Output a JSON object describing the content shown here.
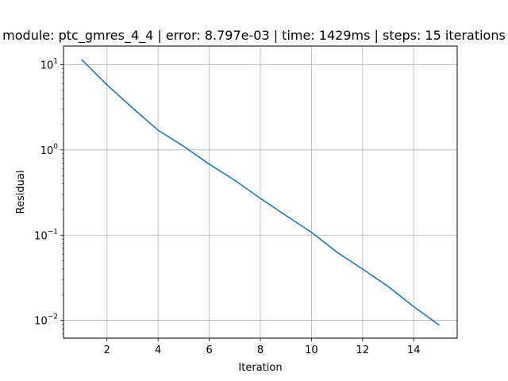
{
  "chart_data": {
    "type": "line",
    "title": "module: ptc_gmres_4_4 | error: 8.797e-03 | time: 1429ms | steps: 15 iterations",
    "xlabel": "Iteration",
    "ylabel": "Residual",
    "xlim": [
      0.3,
      15.7
    ],
    "ylim": [
      0.0062,
      16.5
    ],
    "yscale": "log",
    "grid": true,
    "x_ticks": [
      2,
      4,
      6,
      8,
      10,
      12,
      14
    ],
    "x_tick_labels": [
      "2",
      "4",
      "6",
      "8",
      "10",
      "12",
      "14"
    ],
    "y_ticks": [
      10,
      1,
      0.1,
      0.01
    ],
    "y_tick_labels": [
      {
        "base": "10",
        "exp": "1"
      },
      {
        "base": "10",
        "exp": "0"
      },
      {
        "base": "10",
        "exp": "−1"
      },
      {
        "base": "10",
        "exp": "−2"
      }
    ],
    "series": [
      {
        "color": "#1f77b4",
        "x": [
          1,
          2,
          3,
          4,
          5,
          6,
          7,
          8,
          9,
          10,
          11,
          12,
          13,
          14,
          15
        ],
        "y": [
          11.5,
          5.8,
          3.1,
          1.7,
          1.1,
          0.68,
          0.44,
          0.27,
          0.17,
          0.108,
          0.063,
          0.04,
          0.025,
          0.0145,
          0.0088
        ]
      }
    ]
  }
}
